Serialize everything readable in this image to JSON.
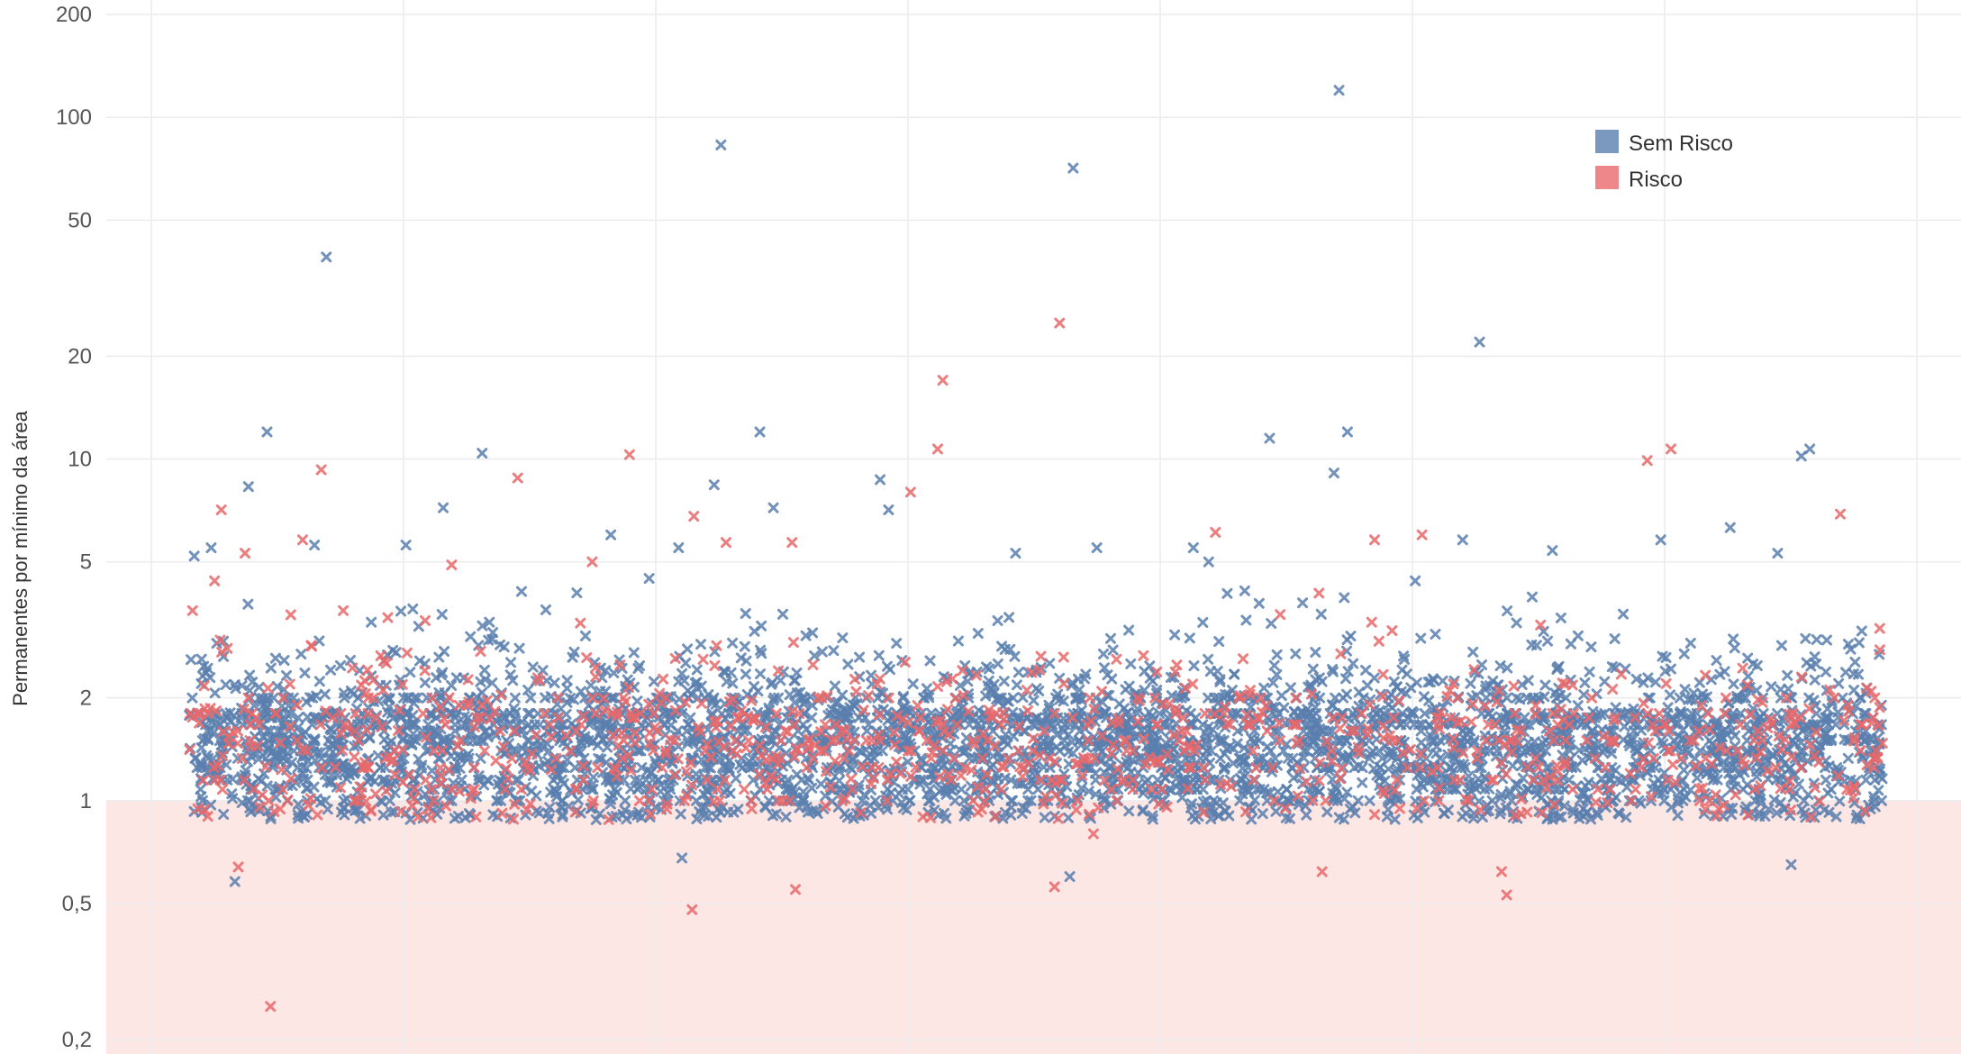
{
  "chart_data": {
    "type": "scatter",
    "title": "",
    "xlabel": "",
    "ylabel": "Permanentes por mínimo da área",
    "y_scale": "log",
    "ylim": [
      0.17,
      200
    ],
    "y_ticks": [
      {
        "value": 200,
        "label": "200"
      },
      {
        "value": 100,
        "label": "100"
      },
      {
        "value": 50,
        "label": "50"
      },
      {
        "value": 20,
        "label": "20"
      },
      {
        "value": 10,
        "label": "10"
      },
      {
        "value": 5,
        "label": "5"
      },
      {
        "value": 2,
        "label": "2"
      },
      {
        "value": 1,
        "label": "1"
      },
      {
        "value": 0.5,
        "label": "0,5"
      },
      {
        "value": 0.2,
        "label": "0,2"
      }
    ],
    "grid": true,
    "threshold_band": {
      "below": 1,
      "color": "#fde7e4"
    },
    "marker": "x",
    "legend": {
      "position": "top-right",
      "items": [
        {
          "name": "Sem Risco",
          "color": "#5a7fae"
        },
        {
          "name": "Risco",
          "color": "#e8696b"
        }
      ]
    },
    "x_range": [
      0,
      100
    ],
    "series": [
      {
        "name": "Sem Risco",
        "color": "#5a7fae",
        "n_background": 3800,
        "outliers": [
          {
            "x": 8.1,
            "y": 39
          },
          {
            "x": 31.4,
            "y": 83
          },
          {
            "x": 52.2,
            "y": 71
          },
          {
            "x": 67.9,
            "y": 120
          },
          {
            "x": 76.2,
            "y": 22
          },
          {
            "x": 4.6,
            "y": 12
          },
          {
            "x": 33.7,
            "y": 12
          },
          {
            "x": 63.8,
            "y": 11.5
          },
          {
            "x": 68.4,
            "y": 12
          },
          {
            "x": 95.7,
            "y": 10.7
          },
          {
            "x": 95.2,
            "y": 10.2
          },
          {
            "x": 17.3,
            "y": 10.4
          },
          {
            "x": 3.5,
            "y": 8.3
          },
          {
            "x": 31.0,
            "y": 8.4
          },
          {
            "x": 40.8,
            "y": 8.7
          },
          {
            "x": 67.6,
            "y": 9.1
          },
          {
            "x": 15.0,
            "y": 7.2
          },
          {
            "x": 34.5,
            "y": 7.2
          },
          {
            "x": 41.3,
            "y": 7.1
          },
          {
            "x": 24.9,
            "y": 6.0
          },
          {
            "x": 7.4,
            "y": 5.6
          },
          {
            "x": 12.8,
            "y": 5.6
          },
          {
            "x": 28.9,
            "y": 5.5
          },
          {
            "x": 53.6,
            "y": 5.5
          },
          {
            "x": 59.3,
            "y": 5.5
          },
          {
            "x": 75.2,
            "y": 5.8
          },
          {
            "x": 93.8,
            "y": 5.3
          },
          {
            "x": 86.9,
            "y": 5.8
          },
          {
            "x": 91.0,
            "y": 6.3
          },
          {
            "x": 2.7,
            "y": 0.58
          },
          {
            "x": 29.1,
            "y": 0.68
          },
          {
            "x": 52.0,
            "y": 0.6
          },
          {
            "x": 94.6,
            "y": 0.65
          },
          {
            "x": 0.3,
            "y": 5.2
          },
          {
            "x": 1.3,
            "y": 5.5
          },
          {
            "x": 48.8,
            "y": 5.3
          },
          {
            "x": 60.2,
            "y": 5.0
          },
          {
            "x": 72.4,
            "y": 4.4
          },
          {
            "x": 80.5,
            "y": 5.4
          }
        ]
      },
      {
        "name": "Risco",
        "color": "#e8696b",
        "n_background": 900,
        "outliers": [
          {
            "x": 51.4,
            "y": 25
          },
          {
            "x": 44.5,
            "y": 17
          },
          {
            "x": 44.2,
            "y": 10.7
          },
          {
            "x": 87.5,
            "y": 10.7
          },
          {
            "x": 86.1,
            "y": 9.9
          },
          {
            "x": 26.0,
            "y": 10.3
          },
          {
            "x": 7.8,
            "y": 9.3
          },
          {
            "x": 19.4,
            "y": 8.8
          },
          {
            "x": 42.6,
            "y": 8.0
          },
          {
            "x": 1.9,
            "y": 7.1
          },
          {
            "x": 29.8,
            "y": 6.8
          },
          {
            "x": 97.5,
            "y": 6.9
          },
          {
            "x": 60.6,
            "y": 6.1
          },
          {
            "x": 72.8,
            "y": 6.0
          },
          {
            "x": 70.0,
            "y": 5.8
          },
          {
            "x": 6.7,
            "y": 5.8
          },
          {
            "x": 31.7,
            "y": 5.7
          },
          {
            "x": 35.6,
            "y": 5.7
          },
          {
            "x": 6.0,
            "y": 3.5
          },
          {
            "x": 9.1,
            "y": 3.6
          },
          {
            "x": 3.3,
            "y": 5.3
          },
          {
            "x": 15.5,
            "y": 4.9
          },
          {
            "x": 1.5,
            "y": 4.4
          },
          {
            "x": 1.1,
            "y": 0.9
          },
          {
            "x": 2.9,
            "y": 0.64
          },
          {
            "x": 4.8,
            "y": 0.25
          },
          {
            "x": 29.7,
            "y": 0.48
          },
          {
            "x": 35.8,
            "y": 0.55
          },
          {
            "x": 51.1,
            "y": 0.56
          },
          {
            "x": 77.8,
            "y": 0.53
          },
          {
            "x": 77.5,
            "y": 0.62
          },
          {
            "x": 47.6,
            "y": 0.9
          },
          {
            "x": 53.4,
            "y": 0.8
          },
          {
            "x": 66.9,
            "y": 0.62
          },
          {
            "x": 0.2,
            "y": 3.6
          },
          {
            "x": 23.8,
            "y": 5.0
          }
        ]
      }
    ]
  }
}
